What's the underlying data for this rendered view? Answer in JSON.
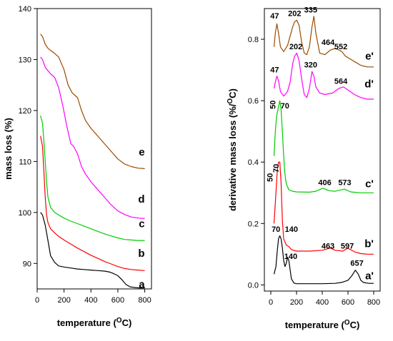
{
  "chart_data": [
    {
      "type": "line",
      "id": "left",
      "title": "",
      "xlabel_main": "temperature (",
      "xlabel_sup": "O",
      "xlabel_end": "C)",
      "ylabel": "mass loss (%)",
      "xlim": [
        0,
        850
      ],
      "ylim": [
        85,
        140
      ],
      "xticks": [
        0,
        200,
        400,
        600,
        800
      ],
      "yticks": [
        90,
        100,
        110,
        120,
        130,
        140
      ],
      "grid": false,
      "series": [
        {
          "name": "a",
          "color": "#000000",
          "label_pos": [
            800,
            85.9
          ],
          "x": [
            25,
            40,
            60,
            80,
            100,
            130,
            160,
            200,
            250,
            300,
            350,
            400,
            450,
            500,
            540,
            570,
            600,
            630,
            660,
            690,
            720,
            760,
            800
          ],
          "y": [
            100,
            99.5,
            97.5,
            94.5,
            91.5,
            90.2,
            89.5,
            89.3,
            89.1,
            88.9,
            88.8,
            88.7,
            88.6,
            88.5,
            88.3,
            88.0,
            87.6,
            86.8,
            85.9,
            85.4,
            85.3,
            85.2,
            85.2
          ]
        },
        {
          "name": "b",
          "color": "#ff0000",
          "label_pos": [
            800,
            92.0
          ],
          "x": [
            25,
            40,
            50,
            60,
            70,
            80,
            100,
            130,
            160,
            200,
            250,
            300,
            350,
            400,
            450,
            500,
            550,
            600,
            650,
            700,
            750,
            800
          ],
          "y": [
            115,
            113,
            108,
            103,
            99.5,
            98,
            96.8,
            96.0,
            95.3,
            94.6,
            93.8,
            93.0,
            92.3,
            91.6,
            91.0,
            90.4,
            89.9,
            89.4,
            89.0,
            88.8,
            88.7,
            88.6
          ]
        },
        {
          "name": "c",
          "color": "#00cc00",
          "label_pos": [
            800,
            97.8
          ],
          "x": [
            25,
            40,
            50,
            60,
            70,
            80,
            100,
            130,
            160,
            200,
            250,
            300,
            350,
            400,
            450,
            500,
            550,
            600,
            650,
            700,
            750,
            800
          ],
          "y": [
            119,
            117.5,
            114,
            110,
            106,
            103,
            101,
            100,
            99.5,
            98.9,
            98.3,
            97.8,
            97.3,
            96.8,
            96.3,
            95.8,
            95.4,
            95.0,
            94.7,
            94.6,
            94.5,
            94.5
          ]
        },
        {
          "name": "d",
          "color": "#ff00ff",
          "label_pos": [
            800,
            102.6
          ],
          "x": [
            25,
            40,
            60,
            80,
            100,
            130,
            160,
            190,
            220,
            250,
            270,
            300,
            330,
            360,
            400,
            450,
            500,
            550,
            600,
            650,
            700,
            750,
            800
          ],
          "y": [
            130.5,
            130,
            128.5,
            127.8,
            127.2,
            126.5,
            124.5,
            121,
            117,
            113.5,
            113,
            111.5,
            109,
            107.5,
            106,
            104.5,
            103,
            101.5,
            100.3,
            99.6,
            99.1,
            98.9,
            98.8
          ]
        },
        {
          "name": "e",
          "color": "#9c4a00",
          "label_pos": [
            800,
            111.9
          ],
          "x": [
            25,
            40,
            60,
            80,
            100,
            130,
            160,
            200,
            230,
            260,
            300,
            330,
            360,
            400,
            450,
            500,
            550,
            600,
            650,
            700,
            750,
            800
          ],
          "y": [
            135,
            134.5,
            133,
            132.2,
            131.8,
            131.2,
            130.5,
            128,
            125,
            123.5,
            122.5,
            120,
            118,
            116.5,
            115,
            113.5,
            112,
            110.5,
            109.5,
            109,
            108.7,
            108.6
          ]
        }
      ]
    },
    {
      "type": "line",
      "id": "right",
      "title": "",
      "xlabel_main": "temperature (",
      "xlabel_sup": "O",
      "xlabel_end": "C)",
      "ylabel_main": "derivative mass loss (%/",
      "ylabel_sup": "O",
      "ylabel_end": "C)",
      "xlim": [
        -50,
        850
      ],
      "ylim": [
        -0.02,
        0.9
      ],
      "xticks": [
        0,
        200,
        400,
        600,
        800
      ],
      "yticks": [
        0.0,
        0.2,
        0.4,
        0.6,
        0.8
      ],
      "ytick_labels": [
        "0.0",
        "0.2",
        "0.4",
        "0.6",
        "0.8"
      ],
      "grid": false,
      "series": [
        {
          "name": "a'",
          "color": "#000000",
          "label_pos": [
            800,
            0.03
          ],
          "x": [
            25,
            40,
            50,
            60,
            70,
            80,
            90,
            100,
            110,
            120,
            130,
            140,
            150,
            160,
            180,
            200,
            300,
            400,
            500,
            550,
            600,
            630,
            657,
            680,
            700,
            720,
            760,
            800
          ],
          "y": [
            0.035,
            0.06,
            0.11,
            0.15,
            0.16,
            0.15,
            0.12,
            0.08,
            0.06,
            0.07,
            0.09,
            0.08,
            0.05,
            0.02,
            0.006,
            0.004,
            0.004,
            0.004,
            0.005,
            0.008,
            0.015,
            0.03,
            0.048,
            0.035,
            0.015,
            0.008,
            0.005,
            0.005
          ]
        },
        {
          "name": "b'",
          "color": "#ff0000",
          "label_pos": [
            800,
            0.135
          ],
          "x": [
            25,
            40,
            50,
            60,
            70,
            80,
            90,
            100,
            120,
            140,
            160,
            200,
            300,
            400,
            463,
            500,
            560,
            597,
            650,
            700,
            750,
            800
          ],
          "y": [
            0.2,
            0.3,
            0.37,
            0.4,
            0.4,
            0.33,
            0.21,
            0.15,
            0.13,
            0.125,
            0.115,
            0.11,
            0.11,
            0.113,
            0.12,
            0.113,
            0.11,
            0.12,
            0.108,
            0.102,
            0.1,
            0.1
          ]
        },
        {
          "name": "c'",
          "color": "#00cc00",
          "label_pos": [
            800,
            0.33
          ],
          "x": [
            25,
            35,
            45,
            55,
            60,
            70,
            80,
            90,
            100,
            110,
            120,
            140,
            170,
            200,
            300,
            350,
            406,
            450,
            500,
            573,
            620,
            700,
            800
          ],
          "y": [
            0.42,
            0.5,
            0.55,
            0.57,
            0.58,
            0.6,
            0.57,
            0.5,
            0.42,
            0.36,
            0.33,
            0.31,
            0.305,
            0.303,
            0.302,
            0.305,
            0.315,
            0.307,
            0.305,
            0.312,
            0.303,
            0.3,
            0.3
          ]
        },
        {
          "name": "d'",
          "color": "#ff00ff",
          "label_pos": [
            800,
            0.655
          ],
          "x": [
            25,
            35,
            47,
            60,
            75,
            100,
            130,
            150,
            170,
            185,
            202,
            220,
            240,
            260,
            280,
            300,
            320,
            335,
            350,
            380,
            420,
            480,
            530,
            564,
            600,
            650,
            700,
            750,
            800
          ],
          "y": [
            0.64,
            0.66,
            0.68,
            0.665,
            0.63,
            0.615,
            0.63,
            0.66,
            0.72,
            0.745,
            0.755,
            0.73,
            0.67,
            0.62,
            0.61,
            0.64,
            0.695,
            0.68,
            0.645,
            0.625,
            0.62,
            0.625,
            0.64,
            0.645,
            0.635,
            0.62,
            0.61,
            0.605,
            0.605
          ]
        },
        {
          "name": "e'",
          "color": "#9c4a00",
          "label_pos": [
            800,
            0.745
          ],
          "x": [
            25,
            35,
            47,
            60,
            75,
            100,
            130,
            150,
            170,
            185,
            202,
            220,
            240,
            260,
            280,
            300,
            320,
            335,
            350,
            380,
            420,
            464,
            500,
            530,
            552,
            580,
            620,
            660,
            700,
            750,
            800
          ],
          "y": [
            0.775,
            0.82,
            0.85,
            0.82,
            0.775,
            0.76,
            0.78,
            0.81,
            0.84,
            0.857,
            0.862,
            0.845,
            0.79,
            0.755,
            0.75,
            0.775,
            0.84,
            0.875,
            0.82,
            0.755,
            0.75,
            0.765,
            0.77,
            0.765,
            0.76,
            0.745,
            0.735,
            0.725,
            0.715,
            0.71,
            0.71
          ]
        }
      ],
      "annotations": [
        {
          "text": "47",
          "x": 30,
          "y": 0.868
        },
        {
          "text": "202",
          "x": 185,
          "y": 0.876
        },
        {
          "text": "335",
          "x": 310,
          "y": 0.887
        },
        {
          "text": "464",
          "x": 445,
          "y": 0.781
        },
        {
          "text": "552",
          "x": 545,
          "y": 0.768
        },
        {
          "text": "202",
          "x": 195,
          "y": 0.767
        },
        {
          "text": "47",
          "x": 30,
          "y": 0.692
        },
        {
          "text": "320",
          "x": 310,
          "y": 0.708
        },
        {
          "text": "564",
          "x": 545,
          "y": 0.655
        },
        {
          "text": "50",
          "x": 35,
          "y": 0.587,
          "rotate": true
        },
        {
          "text": "70",
          "x": 110,
          "y": 0.575
        },
        {
          "text": "50",
          "x": 15,
          "y": 0.35,
          "rotate": true
        },
        {
          "text": "70",
          "x": 60,
          "y": 0.38,
          "rotate": true
        },
        {
          "text": "406",
          "x": 420,
          "y": 0.325
        },
        {
          "text": "573",
          "x": 575,
          "y": 0.325
        },
        {
          "text": "70",
          "x": 40,
          "y": 0.173
        },
        {
          "text": "140",
          "x": 160,
          "y": 0.173
        },
        {
          "text": "463",
          "x": 445,
          "y": 0.118
        },
        {
          "text": "597",
          "x": 595,
          "y": 0.118
        },
        {
          "text": "140",
          "x": 155,
          "y": 0.085
        },
        {
          "text": "657",
          "x": 670,
          "y": 0.062
        }
      ]
    }
  ]
}
